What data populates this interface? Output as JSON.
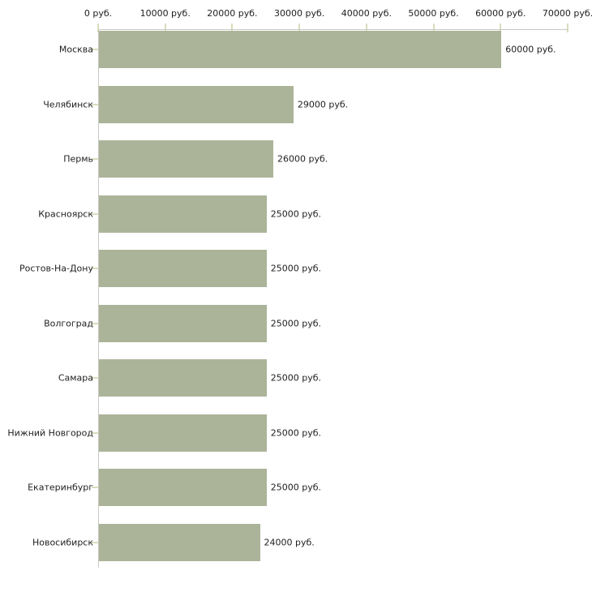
{
  "chart_data": {
    "type": "bar",
    "orientation": "horizontal",
    "title": "",
    "categories": [
      "Москва",
      "Челябинск",
      "Пермь",
      "Красноярск",
      "Ростов-На-Дону",
      "Волгоград",
      "Самара",
      "Нижний Новгород",
      "Екатеринбург",
      "Новосибирск"
    ],
    "values": [
      60000,
      29000,
      26000,
      25000,
      25000,
      25000,
      25000,
      25000,
      25000,
      24000
    ],
    "value_labels": [
      "60000 руб.",
      "29000 руб.",
      "26000 руб.",
      "25000 руб.",
      "25000 руб.",
      "25000 руб.",
      "25000 руб.",
      "25000 руб.",
      "25000 руб.",
      "24000 руб."
    ],
    "x_ticks": [
      0,
      10000,
      20000,
      30000,
      40000,
      50000,
      60000,
      70000
    ],
    "x_tick_labels": [
      "0 руб.",
      "10000 руб.",
      "20000 руб.",
      "30000 руб.",
      "40000 руб.",
      "50000 руб.",
      "60000 руб.",
      "70000 руб."
    ],
    "xlim": [
      0,
      70000
    ],
    "grid": false,
    "legend": "none",
    "colors": {
      "bar": "#abb499",
      "axis_line": "#c8c8c3",
      "tick": "#d9ddbc",
      "text": "#1e1e1e",
      "background": "#ffffff"
    }
  }
}
